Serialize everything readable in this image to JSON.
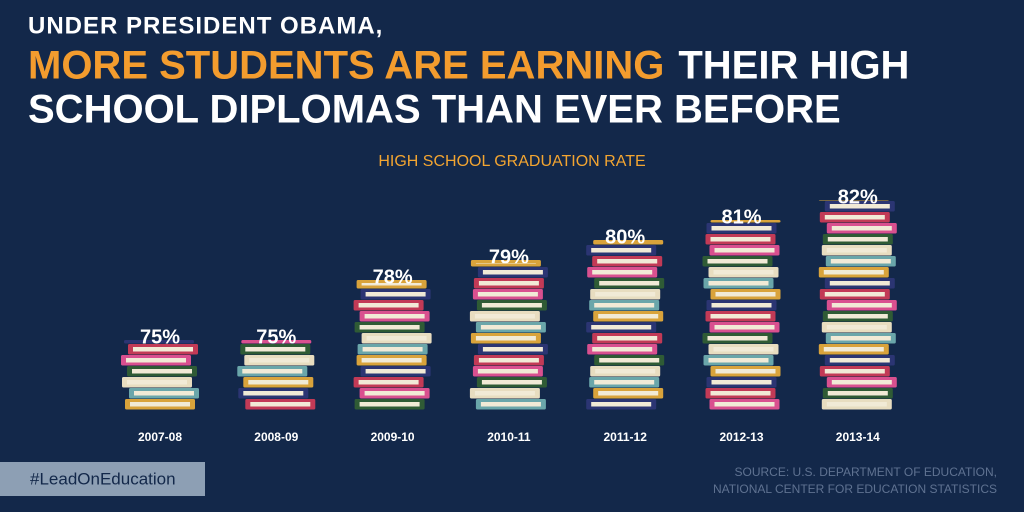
{
  "chart_data": {
    "type": "bar",
    "title": "UNDER PRESIDENT OBAMA,",
    "headline": [
      "MORE STUDENTS ARE EARNING",
      "THEIR HIGH",
      "SCHOOL DIPLOMAS THAN EVER BEFORE"
    ],
    "subtitle": "HIGH SCHOOL GRADUATION RATE",
    "categories": [
      "2007-08",
      "2008-09",
      "2009-10",
      "2010-11",
      "2011-12",
      "2012-13",
      "2013-14"
    ],
    "values": [
      75,
      75,
      78,
      79,
      80,
      81,
      82
    ],
    "value_labels": [
      "75%",
      "75%",
      "78%",
      "79%",
      "80%",
      "81%",
      "82%"
    ],
    "colors": [
      "#d9a33b",
      "#c23a56",
      "#2f5b35",
      "#6aa6aa",
      "#2b3573",
      "#d9508f",
      "#e8ddc0"
    ],
    "hashtag": "#LeadOnEducation",
    "source": [
      "SOURCE: U.S. DEPARTMENT OF EDUCATION,",
      "NATIONAL CENTER FOR EDUCATION STATISTICS"
    ]
  }
}
